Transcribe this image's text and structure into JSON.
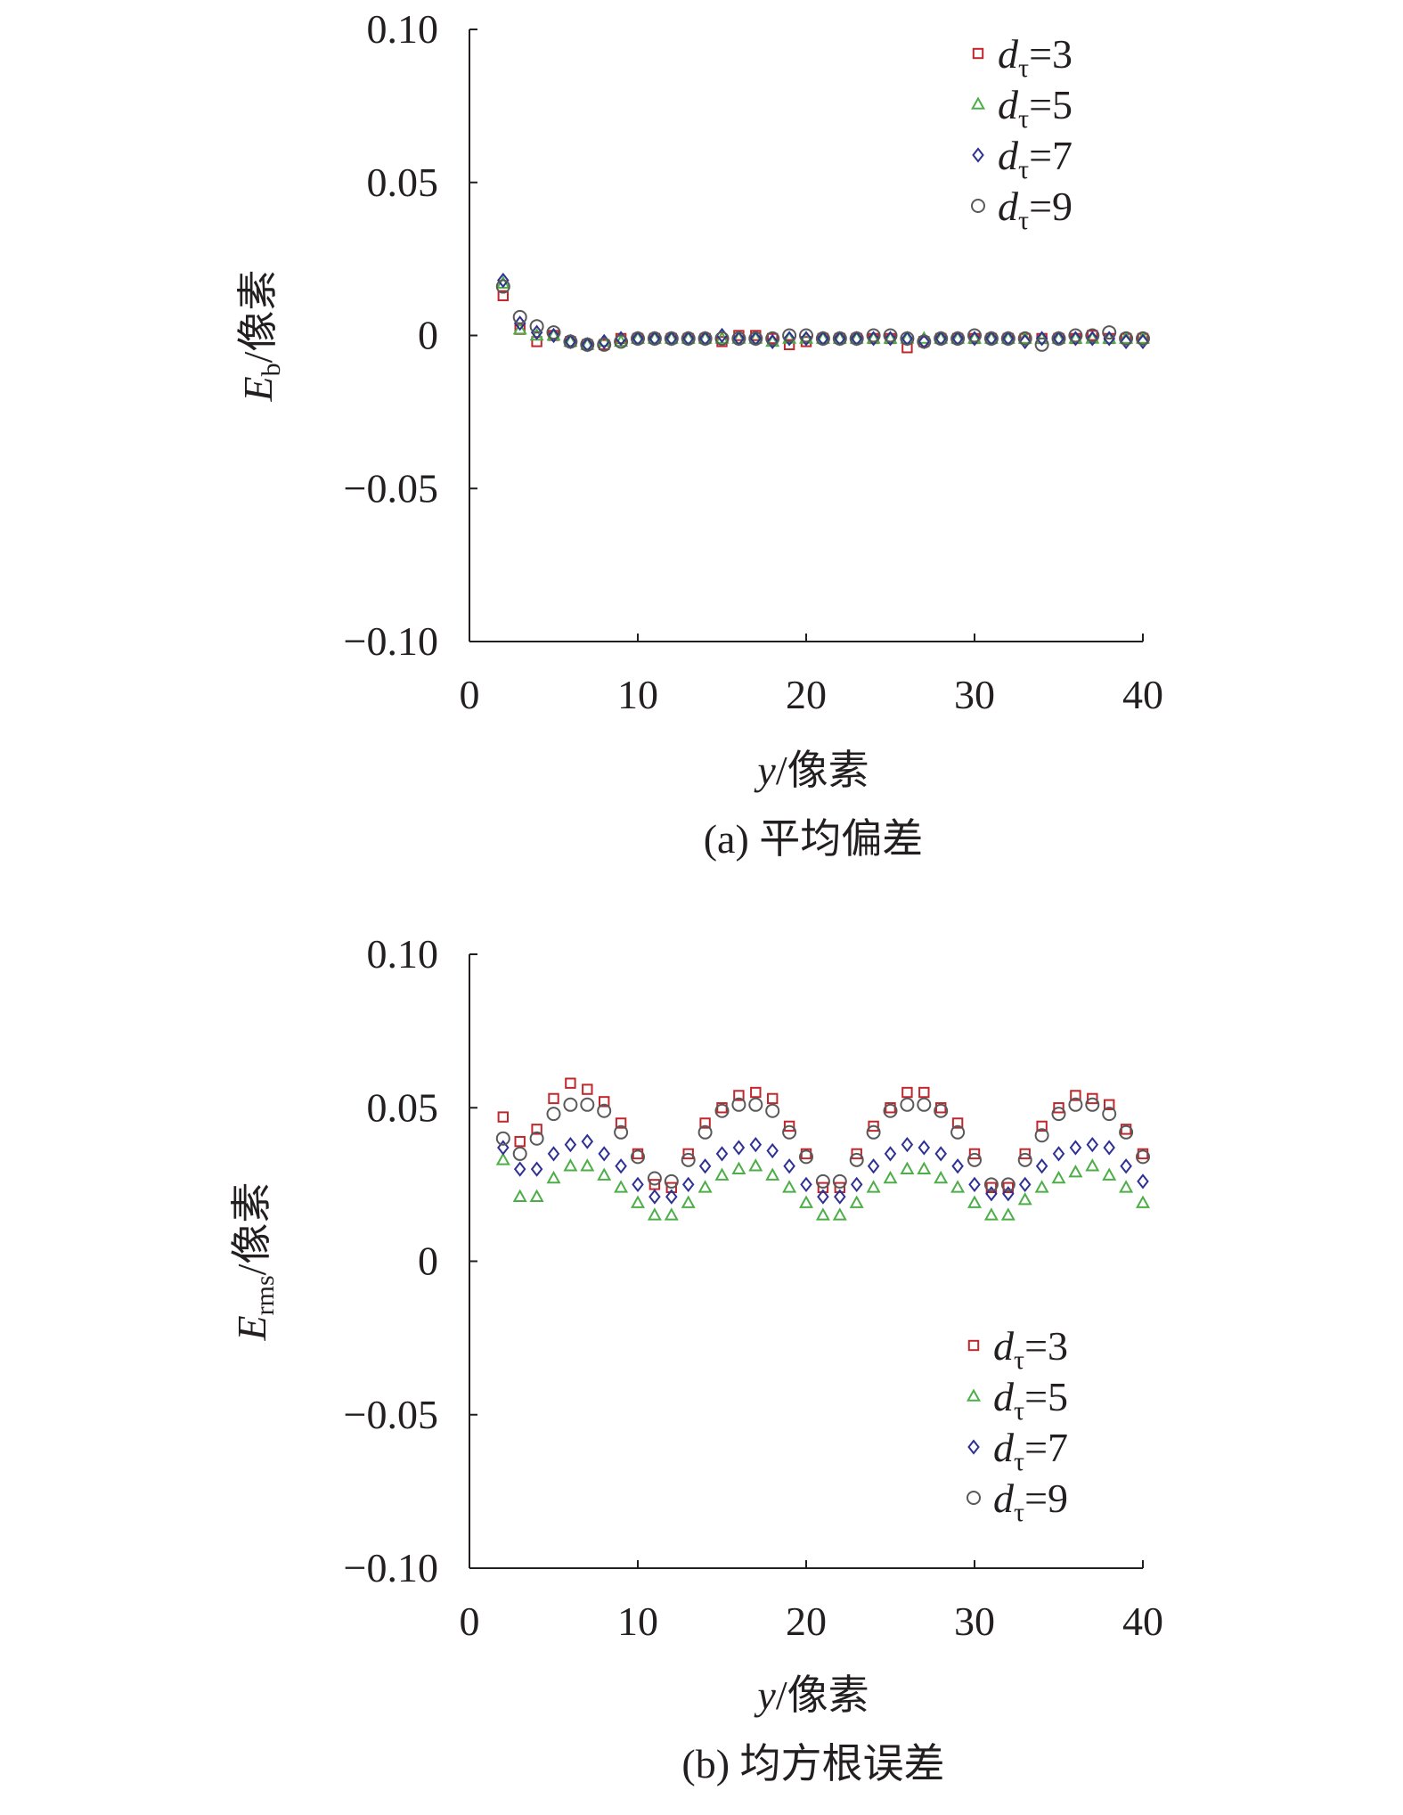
{
  "chart_data": [
    {
      "type": "scatter",
      "caption": "(a) 平均偏差",
      "xlabel_var": "y",
      "xlabel_unit": "/像素",
      "ylabel_var": "E",
      "ylabel_sub": "b",
      "ylabel_unit": "/像素",
      "xlim": [
        0,
        40
      ],
      "ylim": [
        -0.1,
        0.1
      ],
      "xticks": [
        0,
        10,
        20,
        30,
        40
      ],
      "yticks": [
        -0.1,
        -0.05,
        0,
        0.05,
        0.1
      ],
      "xtick_labels": [
        "0",
        "10",
        "20",
        "30",
        "40"
      ],
      "ytick_labels": [
        "−0.10",
        "−0.05",
        "0",
        "0.05",
        "0.10"
      ],
      "legend_position": "top-right",
      "x": [
        2,
        3,
        4,
        5,
        6,
        7,
        8,
        9,
        10,
        11,
        12,
        13,
        14,
        15,
        16,
        17,
        18,
        19,
        20,
        21,
        22,
        23,
        24,
        25,
        26,
        27,
        28,
        29,
        30,
        31,
        32,
        33,
        34,
        35,
        36,
        37,
        38,
        39,
        40
      ],
      "series": [
        {
          "name": "dτ=3",
          "legend_var": "d",
          "legend_sub": "τ",
          "legend_val": "=3",
          "marker": "square",
          "color": "#c0272d",
          "values": [
            0.013,
            0.002,
            -0.002,
            0.0,
            -0.002,
            -0.003,
            -0.003,
            -0.001,
            -0.001,
            -0.001,
            -0.001,
            -0.001,
            -0.001,
            -0.002,
            0.0,
            0.0,
            -0.001,
            -0.003,
            -0.002,
            -0.001,
            -0.001,
            -0.001,
            -0.001,
            -0.001,
            -0.004,
            -0.002,
            -0.001,
            -0.001,
            -0.001,
            -0.001,
            -0.001,
            -0.001,
            -0.001,
            -0.001,
            -0.001,
            0.0,
            -0.001,
            -0.001,
            -0.001
          ]
        },
        {
          "name": "dτ=5",
          "legend_var": "d",
          "legend_sub": "τ",
          "legend_val": "=5",
          "marker": "triangle",
          "color": "#4dae48",
          "values": [
            0.017,
            0.002,
            0.0,
            0.0,
            -0.002,
            -0.003,
            -0.002,
            -0.002,
            -0.001,
            -0.001,
            -0.001,
            -0.001,
            -0.001,
            -0.001,
            -0.001,
            -0.001,
            -0.002,
            -0.001,
            -0.001,
            -0.001,
            -0.001,
            -0.001,
            -0.001,
            -0.001,
            -0.001,
            -0.001,
            -0.001,
            -0.001,
            -0.001,
            -0.001,
            -0.001,
            -0.001,
            -0.001,
            -0.001,
            -0.001,
            -0.001,
            -0.001,
            -0.001,
            -0.001
          ]
        },
        {
          "name": "dτ=7",
          "legend_var": "d",
          "legend_sub": "τ",
          "legend_val": "=7",
          "marker": "diamond",
          "color": "#2e3192",
          "values": [
            0.018,
            0.004,
            0.001,
            0.0,
            -0.002,
            -0.003,
            -0.002,
            -0.001,
            -0.001,
            -0.001,
            -0.001,
            -0.001,
            -0.001,
            0.0,
            -0.001,
            -0.001,
            -0.002,
            -0.001,
            -0.001,
            -0.001,
            -0.001,
            -0.001,
            -0.001,
            -0.001,
            -0.001,
            -0.002,
            -0.001,
            -0.001,
            -0.001,
            -0.001,
            -0.001,
            -0.002,
            -0.001,
            -0.001,
            -0.001,
            -0.001,
            -0.001,
            -0.002,
            -0.002
          ]
        },
        {
          "name": "dτ=9",
          "legend_var": "d",
          "legend_sub": "τ",
          "legend_val": "=9",
          "marker": "circle",
          "color": "#595959",
          "values": [
            0.016,
            0.006,
            0.003,
            0.001,
            -0.002,
            -0.003,
            -0.003,
            -0.002,
            -0.001,
            -0.001,
            -0.001,
            -0.001,
            -0.001,
            -0.001,
            -0.001,
            -0.001,
            -0.001,
            0.0,
            0.0,
            -0.001,
            -0.001,
            -0.001,
            0.0,
            0.0,
            -0.001,
            -0.002,
            -0.001,
            -0.001,
            0.0,
            -0.001,
            -0.001,
            -0.001,
            -0.003,
            -0.001,
            0.0,
            0.0,
            0.001,
            -0.001,
            -0.001
          ]
        }
      ]
    },
    {
      "type": "scatter",
      "caption": "(b) 均方根误差",
      "xlabel_var": "y",
      "xlabel_unit": "/像素",
      "ylabel_var": "E",
      "ylabel_sub": "rms",
      "ylabel_unit": "/像素",
      "xlim": [
        0,
        40
      ],
      "ylim": [
        -0.1,
        0.1
      ],
      "xticks": [
        0,
        10,
        20,
        30,
        40
      ],
      "yticks": [
        -0.1,
        -0.05,
        0,
        0.05,
        0.1
      ],
      "xtick_labels": [
        "0",
        "10",
        "20",
        "30",
        "40"
      ],
      "ytick_labels": [
        "−0.10",
        "−0.05",
        "0",
        "0.05",
        "0.10"
      ],
      "legend_position": "bottom-right",
      "x": [
        2,
        3,
        4,
        5,
        6,
        7,
        8,
        9,
        10,
        11,
        12,
        13,
        14,
        15,
        16,
        17,
        18,
        19,
        20,
        21,
        22,
        23,
        24,
        25,
        26,
        27,
        28,
        29,
        30,
        31,
        32,
        33,
        34,
        35,
        36,
        37,
        38,
        39,
        40
      ],
      "series": [
        {
          "name": "dτ=3",
          "legend_var": "d",
          "legend_sub": "τ",
          "legend_val": "=3",
          "marker": "square",
          "color": "#c0272d",
          "values": [
            0.047,
            0.039,
            0.043,
            0.053,
            0.058,
            0.056,
            0.052,
            0.045,
            0.035,
            0.025,
            0.024,
            0.035,
            0.045,
            0.05,
            0.054,
            0.055,
            0.053,
            0.044,
            0.035,
            0.024,
            0.024,
            0.035,
            0.044,
            0.05,
            0.055,
            0.055,
            0.05,
            0.045,
            0.035,
            0.024,
            0.024,
            0.035,
            0.044,
            0.05,
            0.054,
            0.053,
            0.051,
            0.043,
            0.035
          ]
        },
        {
          "name": "dτ=5",
          "legend_var": "d",
          "legend_sub": "τ",
          "legend_val": "=5",
          "marker": "triangle",
          "color": "#4dae48",
          "values": [
            0.033,
            0.021,
            0.021,
            0.027,
            0.031,
            0.031,
            0.028,
            0.024,
            0.019,
            0.015,
            0.015,
            0.019,
            0.024,
            0.028,
            0.03,
            0.031,
            0.028,
            0.024,
            0.019,
            0.015,
            0.015,
            0.019,
            0.024,
            0.027,
            0.03,
            0.03,
            0.027,
            0.024,
            0.019,
            0.015,
            0.015,
            0.02,
            0.024,
            0.027,
            0.029,
            0.031,
            0.028,
            0.024,
            0.019
          ]
        },
        {
          "name": "dτ=7",
          "legend_var": "d",
          "legend_sub": "τ",
          "legend_val": "=7",
          "marker": "diamond",
          "color": "#2e3192",
          "values": [
            0.037,
            0.03,
            0.03,
            0.035,
            0.038,
            0.039,
            0.035,
            0.031,
            0.025,
            0.021,
            0.021,
            0.025,
            0.031,
            0.035,
            0.037,
            0.038,
            0.036,
            0.031,
            0.025,
            0.021,
            0.021,
            0.025,
            0.031,
            0.035,
            0.038,
            0.037,
            0.035,
            0.031,
            0.025,
            0.022,
            0.022,
            0.025,
            0.031,
            0.035,
            0.037,
            0.038,
            0.037,
            0.031,
            0.026
          ]
        },
        {
          "name": "dτ=9",
          "legend_var": "d",
          "legend_sub": "τ",
          "legend_val": "=9",
          "marker": "circle",
          "color": "#595959",
          "values": [
            0.04,
            0.035,
            0.04,
            0.048,
            0.051,
            0.051,
            0.049,
            0.042,
            0.034,
            0.027,
            0.026,
            0.033,
            0.042,
            0.049,
            0.051,
            0.051,
            0.049,
            0.042,
            0.034,
            0.026,
            0.026,
            0.033,
            0.042,
            0.049,
            0.051,
            0.051,
            0.049,
            0.042,
            0.033,
            0.025,
            0.025,
            0.033,
            0.041,
            0.048,
            0.051,
            0.051,
            0.048,
            0.042,
            0.034
          ]
        }
      ]
    }
  ]
}
